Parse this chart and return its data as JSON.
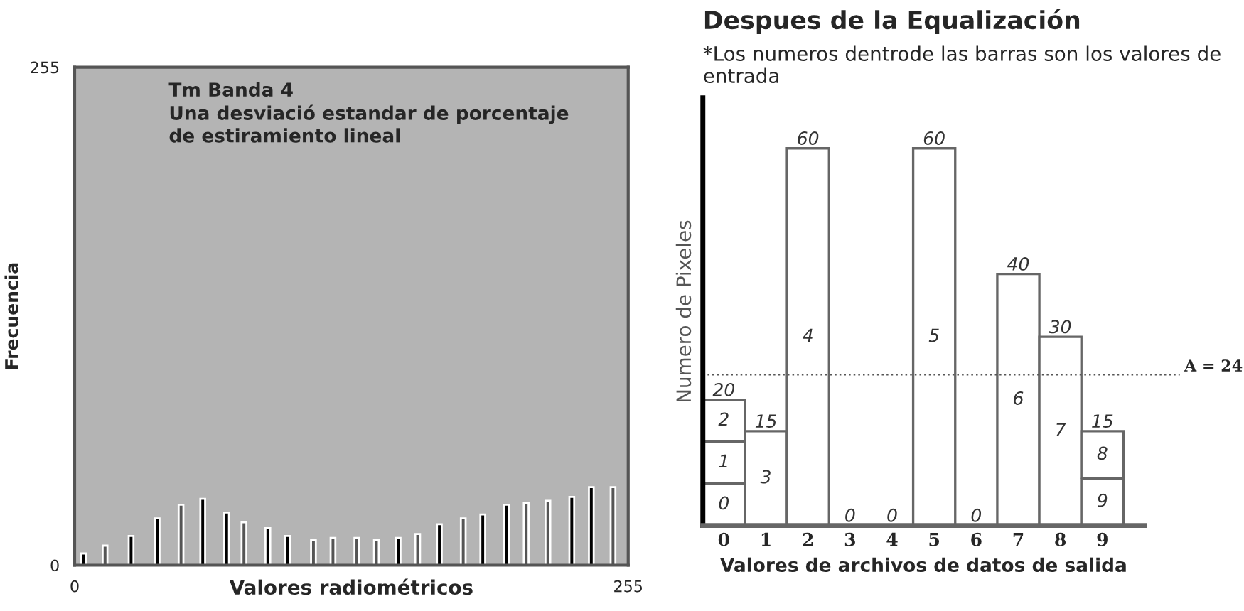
{
  "chart_data": [
    {
      "type": "bar",
      "xlabel": "Valores radiométricos",
      "ylabel": "Frecuencia",
      "annotations": [
        "Tm Banda 4\nUna desviació estandar de porcentaje\nde estiramiento lineal"
      ],
      "x": [
        4,
        14,
        26,
        38,
        49,
        59,
        70,
        78,
        89,
        98,
        110,
        119,
        130,
        139,
        149,
        158,
        168,
        179,
        188,
        199,
        208,
        218,
        229,
        238,
        248
      ],
      "values": [
        6,
        10,
        15,
        24,
        31,
        34,
        27,
        22,
        19,
        15,
        13,
        14,
        14,
        13,
        14,
        16,
        21,
        24,
        26,
        31,
        32,
        33,
        35,
        40,
        40
      ],
      "colors": [
        "#000000",
        "#555555",
        "#000000",
        "#000000",
        "#555555",
        "#000000",
        "#000000",
        "#555555",
        "#000000",
        "#000000",
        "#555555",
        "#555555",
        "#555555",
        "#555555",
        "#000000",
        "#555555",
        "#000000",
        "#555555",
        "#000000",
        "#000000",
        "#555555",
        "#555555",
        "#000000",
        "#000000",
        "#555555"
      ],
      "xlim": [
        0,
        255
      ],
      "xticks": [
        0,
        255
      ],
      "ylim": [
        0,
        255
      ],
      "yticks": [
        0,
        255
      ],
      "grid": false
    },
    {
      "type": "bar",
      "title": "Despues de la Equalización",
      "subtitle": "*Los numeros dentrode las barras son los valores de entrada",
      "xlabel": "Valores de archivos de datos de salida",
      "ylabel": "Numero de Pixeles",
      "categories": [
        "0",
        "1",
        "2",
        "3",
        "4",
        "5",
        "6",
        "7",
        "8",
        "9"
      ],
      "series": [
        {
          "color": "#ffffff",
          "values": [
            20,
            15,
            60,
            0,
            0,
            60,
            0,
            40,
            30,
            15
          ]
        }
      ],
      "data_labels": true,
      "annotations": [
        "0\n1\n2",
        "3",
        "4",
        "5",
        "6",
        "7",
        "9\n8"
      ],
      "tick_labels": "x",
      "ref_lines": [
        {
          "axis": "y",
          "value": 24,
          "label": "A = 24",
          "color": "#555555",
          "line_style": "dotted"
        }
      ],
      "grid": false
    }
  ]
}
